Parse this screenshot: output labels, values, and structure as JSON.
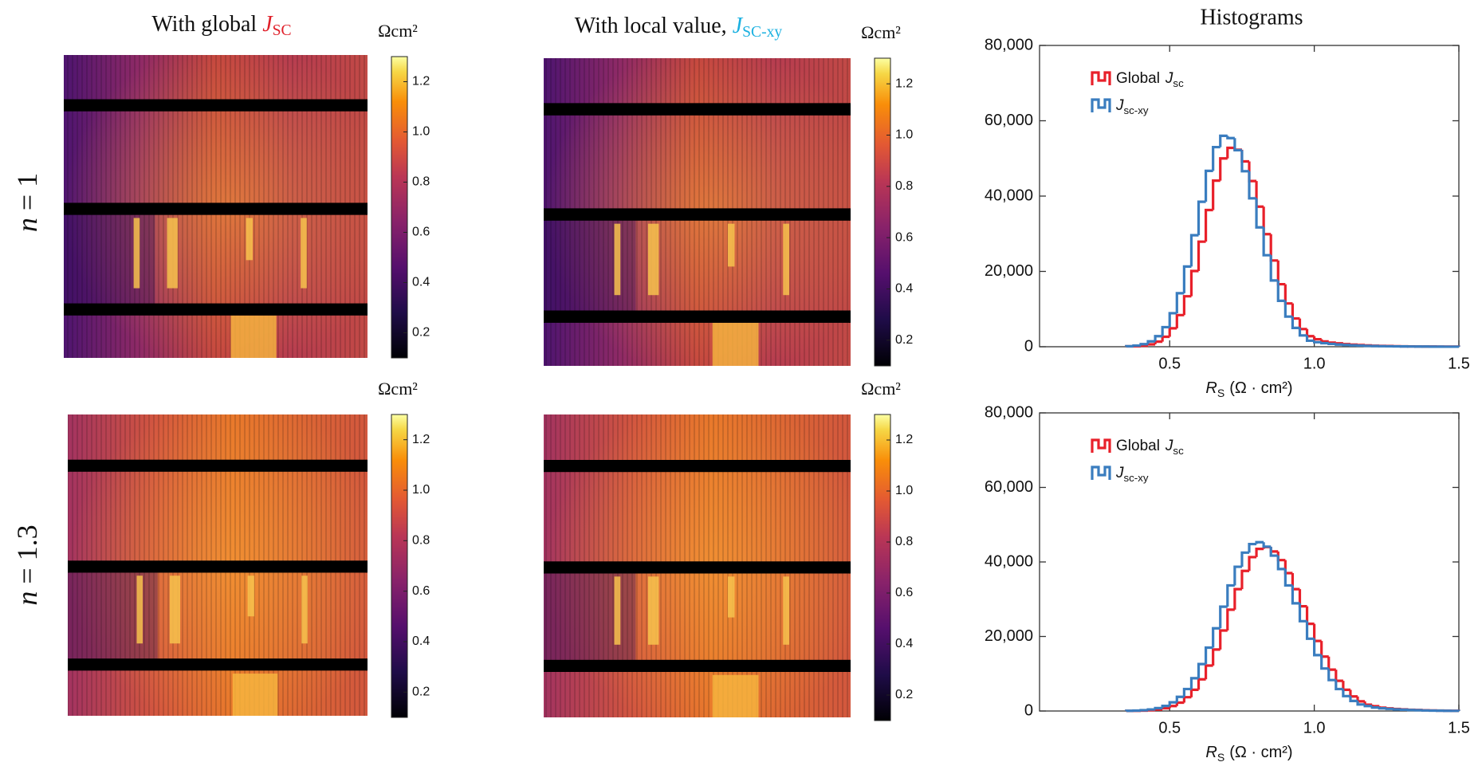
{
  "row_labels": [
    {
      "variable": "n",
      "rest": "= 1"
    },
    {
      "variable": "n",
      "rest": "= 1.3"
    }
  ],
  "chart_data": [
    {
      "type": "heatmap",
      "title": {
        "text": "With global",
        "symbol": "J",
        "subscript": "SC",
        "color": "#e0202a"
      },
      "colorbar_label": "Ωcm²",
      "clim": [
        0.1,
        1.3
      ],
      "cticks": [
        0.2,
        0.4,
        0.6,
        0.8,
        {
          "value": 1.0,
          "label": "1.0"
        },
        1.2
      ],
      "colormap": "inferno"
    },
    {
      "type": "heatmap",
      "title": {
        "text": "With local value,",
        "symbol": "J",
        "subscript": "SC-xy",
        "color": "#1ab0e0"
      },
      "colorbar_label": "Ωcm²",
      "clim": [
        0.1,
        1.3
      ],
      "cticks": [
        0.2,
        0.4,
        0.6,
        0.8,
        {
          "value": 1.0,
          "label": "1.0"
        },
        1.2
      ],
      "colormap": "inferno"
    },
    {
      "type": "heatmap",
      "colorbar_label": "Ωcm²",
      "clim": [
        0.1,
        1.3
      ],
      "cticks": [
        0.2,
        0.4,
        0.6,
        0.8,
        {
          "value": 1.0,
          "label": "1.0"
        },
        1.2
      ],
      "colormap": "inferno"
    },
    {
      "type": "heatmap",
      "colorbar_label": "Ωcm²",
      "clim": [
        0.1,
        1.3
      ],
      "cticks": [
        0.2,
        0.4,
        0.6,
        0.8,
        {
          "value": 1.0,
          "label": "1.0"
        },
        1.2
      ],
      "colormap": "inferno"
    },
    {
      "type": "histogram",
      "title": "Histograms",
      "xlabel": {
        "symbol": "R",
        "subscript": "S",
        "unit": "(Ω · cm²)"
      },
      "xlim": [
        0.05,
        1.5
      ],
      "xticks": [
        0.5,
        {
          "value": 1.0,
          "label": "1.0"
        },
        1.5
      ],
      "ylim": [
        0,
        80000
      ],
      "yticks": [
        0,
        {
          "value": 20000,
          "label": "20,000"
        },
        {
          "value": 40000,
          "label": "40,000"
        },
        {
          "value": 60000,
          "label": "60,000"
        },
        {
          "value": 80000,
          "label": "80,000"
        }
      ],
      "legend": "upper left",
      "bins": [
        0.35,
        0.375,
        0.4,
        0.425,
        0.45,
        0.475,
        0.5,
        0.525,
        0.55,
        0.575,
        0.6,
        0.625,
        0.65,
        0.675,
        0.7,
        0.725,
        0.75,
        0.775,
        0.8,
        0.825,
        0.85,
        0.875,
        0.9,
        0.925,
        0.95,
        0.975,
        1.0,
        1.025,
        1.05,
        1.075,
        1.1,
        1.125,
        1.15,
        1.175,
        1.2,
        1.225,
        1.25,
        1.275,
        1.3,
        1.325,
        1.35,
        1.375,
        1.4,
        1.425,
        1.45,
        1.475,
        1.5
      ],
      "series": [
        {
          "name": {
            "text": "Global",
            "symbol": "J",
            "subscript": "sc"
          },
          "color": "#e8202a",
          "values": [
            100,
            120,
            280,
            640,
            1350,
            2650,
            4900,
            8400,
            13400,
            20100,
            27900,
            36300,
            44100,
            50000,
            52800,
            52300,
            49200,
            44000,
            37200,
            29900,
            22900,
            16600,
            11500,
            7500,
            4700,
            2800,
            2000,
            1400,
            1100,
            900,
            700,
            550,
            450,
            350,
            280,
            220,
            180,
            140,
            110,
            90,
            70,
            60,
            50,
            40,
            30,
            20
          ]
        },
        {
          "name": {
            "symbol": "J",
            "subscript": "sc-xy"
          },
          "color": "#3a7dbf",
          "values": [
            130,
            300,
            680,
            1430,
            2810,
            5200,
            8900,
            14200,
            21300,
            29600,
            38500,
            46700,
            53000,
            56000,
            55400,
            52200,
            46600,
            39400,
            31700,
            24300,
            17600,
            12200,
            8000,
            5000,
            3000,
            1600,
            1200,
            950,
            750,
            580,
            480,
            370,
            300,
            230,
            190,
            150,
            120,
            95,
            75,
            65,
            55,
            45,
            30,
            20,
            15,
            10
          ]
        }
      ]
    },
    {
      "type": "histogram",
      "xlabel": {
        "symbol": "R",
        "subscript": "S",
        "unit": "(Ω · cm²)"
      },
      "xlim": [
        0.05,
        1.5
      ],
      "xticks": [
        0.5,
        {
          "value": 1.0,
          "label": "1.0"
        },
        1.5
      ],
      "ylim": [
        0,
        80000
      ],
      "yticks": [
        0,
        {
          "value": 20000,
          "label": "20,000"
        },
        {
          "value": 40000,
          "label": "40,000"
        },
        {
          "value": 60000,
          "label": "60,000"
        },
        {
          "value": 80000,
          "label": "80,000"
        }
      ],
      "legend": "upper left",
      "bins": [
        0.35,
        0.375,
        0.4,
        0.425,
        0.45,
        0.475,
        0.5,
        0.525,
        0.55,
        0.575,
        0.6,
        0.625,
        0.65,
        0.675,
        0.7,
        0.725,
        0.75,
        0.775,
        0.8,
        0.825,
        0.85,
        0.875,
        0.9,
        0.925,
        0.95,
        0.975,
        1.0,
        1.025,
        1.05,
        1.075,
        1.1,
        1.125,
        1.15,
        1.175,
        1.2,
        1.225,
        1.25,
        1.275,
        1.3,
        1.325,
        1.35,
        1.375,
        1.4,
        1.425,
        1.45,
        1.475,
        1.5
      ],
      "series": [
        {
          "name": {
            "text": "Global",
            "symbol": "J",
            "subscript": "sc"
          },
          "color": "#e8202a",
          "values": [
            20,
            50,
            100,
            210,
            400,
            750,
            1330,
            2250,
            3700,
            5700,
            8500,
            12200,
            16500,
            21600,
            27200,
            32700,
            37600,
            41300,
            43500,
            44000,
            42800,
            40500,
            37000,
            32700,
            28100,
            23400,
            18800,
            14600,
            11100,
            8100,
            5700,
            3900,
            2600,
            1700,
            1300,
            900,
            700,
            550,
            420,
            330,
            260,
            200,
            150,
            110,
            80,
            60
          ]
        },
        {
          "name": {
            "symbol": "J",
            "subscript": "sc-xy"
          },
          "color": "#3a7dbf",
          "values": [
            50,
            100,
            220,
            410,
            770,
            1370,
            2320,
            3800,
            5900,
            8800,
            12600,
            17000,
            22200,
            28000,
            33700,
            38700,
            42500,
            44800,
            45300,
            44100,
            41700,
            38100,
            33700,
            28900,
            24100,
            19400,
            15000,
            11400,
            8300,
            5900,
            4000,
            2700,
            1750,
            1340,
            930,
            720,
            570,
            430,
            340,
            270,
            210,
            150,
            110,
            80,
            60,
            40
          ]
        }
      ]
    }
  ]
}
